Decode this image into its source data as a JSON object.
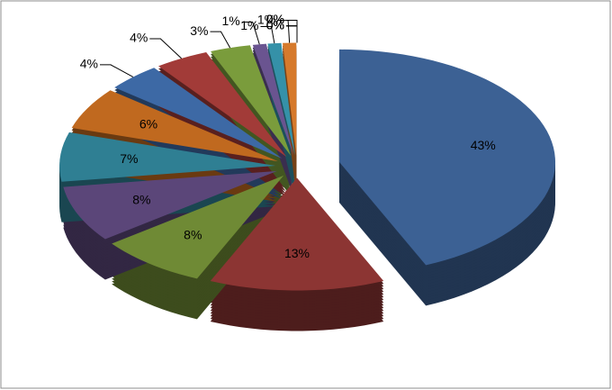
{
  "chart_data": {
    "type": "pie3d",
    "values": [
      43,
      13,
      8,
      8,
      7,
      6,
      4,
      4,
      3,
      1,
      1,
      1,
      0,
      0,
      0,
      0,
      0
    ],
    "value_labels": [
      "43%",
      "13%",
      "8%",
      "8%",
      "7%",
      "6%",
      "4%",
      "4%",
      "3%",
      "1%",
      "1%",
      "1%",
      "0%",
      "0%",
      "0%",
      "0%",
      "0%"
    ],
    "colors": [
      "#3c6194",
      "#8c3533",
      "#6f8a35",
      "#5b4679",
      "#2f7f93",
      "#c0691f",
      "#3d69a5",
      "#a23b38",
      "#7a9c3c",
      "#6a5490",
      "#3591a8",
      "#d67a2c",
      "#4f81bd",
      "#c0504d",
      "#9bbb59",
      "#8064a2",
      "#4bacc6"
    ]
  }
}
